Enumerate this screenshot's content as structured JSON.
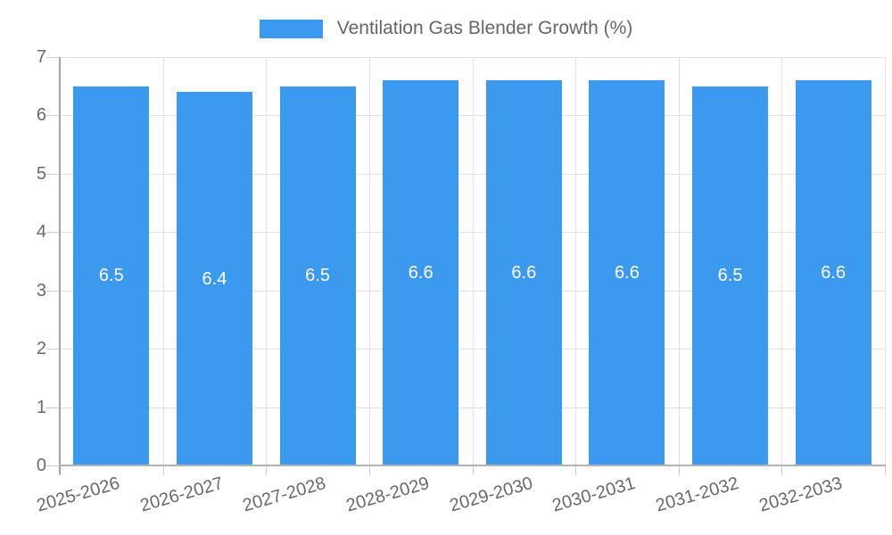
{
  "legend": {
    "label": "Ventilation Gas Blender Growth (%)"
  },
  "chart_data": {
    "type": "bar",
    "title": "Ventilation Gas Blender Growth (%)",
    "categories": [
      "2025-2026",
      "2026-2027",
      "2027-2028",
      "2028-2029",
      "2029-2030",
      "2030-2031",
      "2031-2032",
      "2032-2033"
    ],
    "values": [
      6.5,
      6.4,
      6.5,
      6.6,
      6.6,
      6.6,
      6.5,
      6.6
    ],
    "xlabel": "",
    "ylabel": "",
    "ylim": [
      0,
      7
    ],
    "yticks": [
      0,
      1,
      2,
      3,
      4,
      5,
      6,
      7
    ],
    "grid": true,
    "legend_position": "top",
    "value_labels_inside_bars": true,
    "colors": {
      "bar": "#3b99ee",
      "value_label": "#ffffff",
      "grid": "#e2e2e2",
      "y_axis_line": "#a3a3a3",
      "x_axis_line": "#b3b3b3",
      "tick": "#cccccc",
      "tick_label": "#696969",
      "legend_text": "#666666"
    }
  }
}
